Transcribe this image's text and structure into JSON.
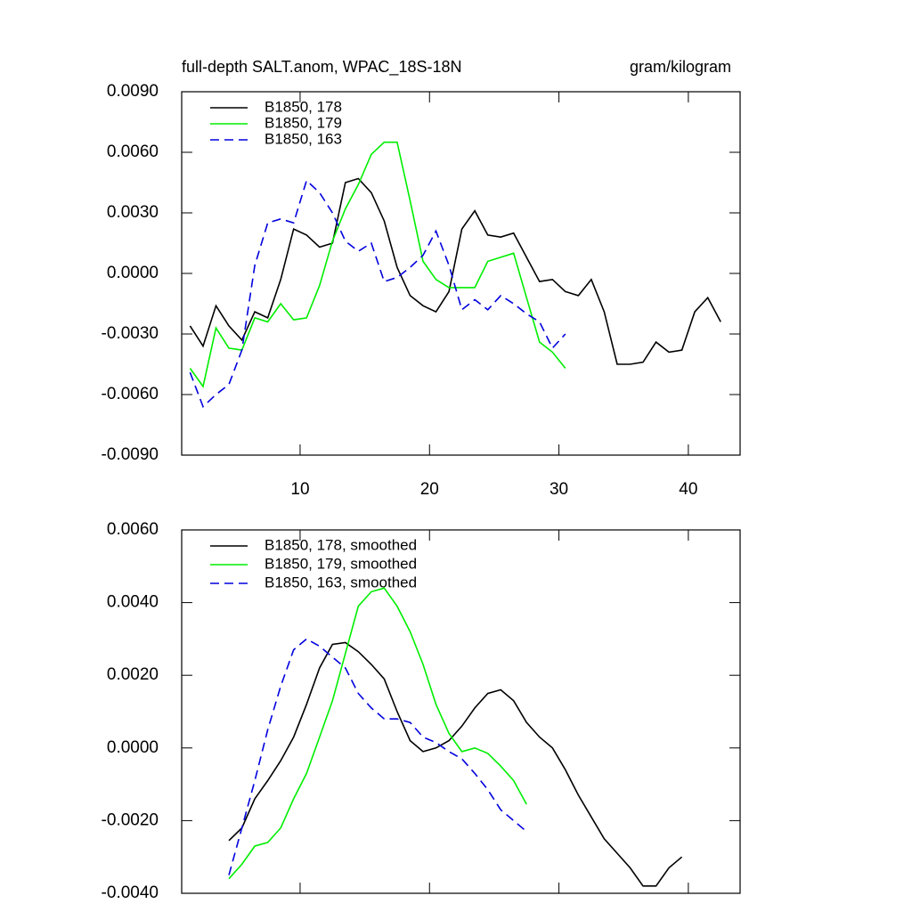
{
  "chart_data": [
    {
      "type": "line",
      "title": "full-depth SALT.anom, WPAC_18S-18N",
      "right_title": "gram/kilogram",
      "xlim": [
        0.85,
        44
      ],
      "xticks": [
        10,
        20,
        30,
        40
      ],
      "show_xtick_labels": true,
      "ylim": [
        -0.009,
        0.009
      ],
      "yticks": [
        {
          "value": -0.009,
          "label": "-0.0090"
        },
        {
          "value": -0.006,
          "label": "-0.0060"
        },
        {
          "value": -0.003,
          "label": "-0.0030"
        },
        {
          "value": 0,
          "label": "0.0000"
        },
        {
          "value": 0.003,
          "label": "0.0030"
        },
        {
          "value": 0.006,
          "label": "0.0060"
        },
        {
          "value": 0.009,
          "label": "0.0090"
        }
      ],
      "series": [
        {
          "name": "B1850, 178",
          "color": "#000000",
          "line_style": "solid",
          "x": [
            1.5,
            2.5,
            3.5,
            4.5,
            5.5,
            6.5,
            7.5,
            8.5,
            9.5,
            10.5,
            11.5,
            12.5,
            13.5,
            14.5,
            15.5,
            16.5,
            17.5,
            18.5,
            19.5,
            20.5,
            21.5,
            22.5,
            23.5,
            24.5,
            25.5,
            26.5,
            27.5,
            28.5,
            29.5,
            30.5,
            31.5,
            32.5,
            33.5,
            34.5,
            35.5,
            36.5,
            37.5,
            38.5,
            39.5,
            40.5,
            41.5,
            42.5
          ],
          "values": [
            -0.0026,
            -0.0036,
            -0.0016,
            -0.0026,
            -0.0033,
            -0.0019,
            -0.0022,
            -0.0003,
            0.0022,
            0.0019,
            0.0013,
            0.0015,
            0.0045,
            0.0047,
            0.004,
            0.0026,
            0.0003,
            -0.0011,
            -0.0016,
            -0.0019,
            -0.0009,
            0.0022,
            0.0031,
            0.0019,
            0.0018,
            0.002,
            0.0008,
            -0.0004,
            -0.0003,
            -0.0009,
            -0.0011,
            -0.0003,
            -0.0019,
            -0.0045,
            -0.0045,
            -0.0044,
            -0.0034,
            -0.0039,
            -0.0038,
            -0.0019,
            -0.0012,
            -0.0024
          ]
        },
        {
          "name": "B1850, 179",
          "color": "#00ee00",
          "line_style": "solid",
          "x": [
            1.5,
            2.5,
            3.5,
            4.5,
            5.5,
            6.5,
            7.5,
            8.5,
            9.5,
            10.5,
            11.5,
            12.5,
            13.5,
            14.5,
            15.5,
            16.5,
            17.5,
            18.5,
            19.5,
            20.5,
            21.5,
            22.5,
            23.5,
            24.5,
            25.5,
            26.5,
            27.5,
            28.5,
            29.5,
            30.5
          ],
          "values": [
            -0.0047,
            -0.0056,
            -0.0027,
            -0.0037,
            -0.0038,
            -0.0022,
            -0.0024,
            -0.0015,
            -0.0023,
            -0.0022,
            -0.0006,
            0.0016,
            0.0032,
            0.0044,
            0.0059,
            0.0065,
            0.0065,
            0.0036,
            0.0006,
            -0.0003,
            -0.0007,
            -0.0007,
            -0.0007,
            0.0006,
            0.0008,
            0.001,
            -0.0012,
            -0.0034,
            -0.0039,
            -0.0047
          ]
        },
        {
          "name": "B1850, 163",
          "color": "#0000dd",
          "line_style": "dashed",
          "x": [
            1.5,
            2.5,
            3.5,
            4.5,
            5.5,
            6.5,
            7.5,
            8.5,
            9.5,
            10.5,
            11.5,
            12.5,
            13.5,
            14.5,
            15.5,
            16.5,
            17.5,
            18.5,
            19.5,
            20.5,
            21.5,
            22.5,
            23.5,
            24.5,
            25.5,
            26.5,
            27.5,
            28.5,
            29.5,
            30.5
          ],
          "values": [
            -0.0049,
            -0.0066,
            -0.006,
            -0.0055,
            -0.0038,
            0.0004,
            0.0025,
            0.0027,
            0.0025,
            0.0046,
            0.004,
            0.003,
            0.0016,
            0.0011,
            0.0015,
            -0.0004,
            -0.0002,
            0.0003,
            0.0009,
            0.0021,
            0.0004,
            -0.0018,
            -0.0013,
            -0.0018,
            -0.0011,
            -0.0015,
            -0.002,
            -0.0024,
            -0.0037,
            -0.003
          ]
        }
      ]
    },
    {
      "type": "line",
      "xlim": [
        0.85,
        44
      ],
      "xticks": [
        10,
        20,
        30,
        40
      ],
      "show_xtick_labels": false,
      "ylim": [
        -0.004,
        0.006
      ],
      "yticks": [
        {
          "value": -0.004,
          "label": "-0.0040"
        },
        {
          "value": -0.002,
          "label": "-0.0020"
        },
        {
          "value": 0,
          "label": "0.0000"
        },
        {
          "value": 0.002,
          "label": "0.0020"
        },
        {
          "value": 0.004,
          "label": "0.0040"
        },
        {
          "value": 0.006,
          "label": "0.0060"
        }
      ],
      "series": [
        {
          "name": "B1850, 178, smoothed",
          "color": "#000000",
          "line_style": "solid",
          "x": [
            4.5,
            5.5,
            6.5,
            7.5,
            8.5,
            9.5,
            10.5,
            11.5,
            12.5,
            13.5,
            14.5,
            15.5,
            16.5,
            17.5,
            18.5,
            19.5,
            20.5,
            21.5,
            22.5,
            23.5,
            24.5,
            25.5,
            26.5,
            27.5,
            28.5,
            29.5,
            30.5,
            31.5,
            32.5,
            33.5,
            34.5,
            35.5,
            36.5,
            37.5,
            38.5,
            39.5
          ],
          "values": [
            -0.00255,
            -0.0022,
            -0.0014,
            -0.0009,
            -0.00035,
            0.0003,
            0.0012,
            0.0022,
            0.00285,
            0.0029,
            0.00265,
            0.0023,
            0.0019,
            0.001,
            0.0002,
            -0.0001,
            0,
            0.0002,
            0.0006,
            0.0011,
            0.0015,
            0.0016,
            0.0013,
            0.0007,
            0.0003,
            0,
            -0.0006,
            -0.0013,
            -0.0019,
            -0.0025,
            -0.0029,
            -0.0033,
            -0.0038,
            -0.0038,
            -0.0033,
            -0.003
          ]
        },
        {
          "name": "B1850, 179, smoothed",
          "color": "#00ee00",
          "line_style": "solid",
          "x": [
            4.5,
            5.5,
            6.5,
            7.5,
            8.5,
            9.5,
            10.5,
            11.5,
            12.5,
            13.5,
            14.5,
            15.5,
            16.5,
            17.5,
            18.5,
            19.5,
            20.5,
            21.5,
            22.5,
            23.5,
            24.5,
            25.5,
            26.5,
            27.5
          ],
          "values": [
            -0.0036,
            -0.0032,
            -0.0027,
            -0.0026,
            -0.0022,
            -0.0014,
            -0.0007,
            0.0003,
            0.0013,
            0.0026,
            0.0039,
            0.0043,
            0.0044,
            0.0039,
            0.0032,
            0.0023,
            0.0012,
            0.0004,
            -0.0001,
            0,
            -0.00015,
            -0.0005,
            -0.0009,
            -0.00155
          ]
        },
        {
          "name": "B1850, 163, smoothed",
          "color": "#0000dd",
          "line_style": "dashed",
          "x": [
            4.5,
            5.5,
            6.5,
            7.5,
            8.5,
            9.5,
            10.5,
            11.5,
            12.5,
            13.5,
            14.5,
            15.5,
            16.5,
            17.5,
            18.5,
            19.5,
            20.5,
            21.5,
            22.5,
            23.5,
            24.5,
            25.5,
            26.5,
            27.5
          ],
          "values": [
            -0.0035,
            -0.0022,
            -0.0009,
            0.0005,
            0.0017,
            0.0027,
            0.003,
            0.0028,
            0.0025,
            0.0022,
            0.0015,
            0.0011,
            0.0008,
            0.0008,
            0.0007,
            0.0003,
            0.00015,
            -0.0001,
            -0.0003,
            -0.0007,
            -0.00115,
            -0.0017,
            -0.002,
            -0.0023
          ]
        }
      ]
    }
  ]
}
